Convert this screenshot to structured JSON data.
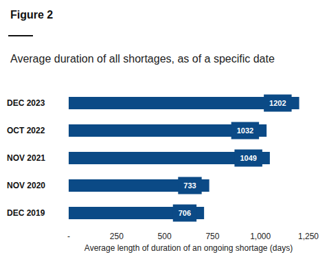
{
  "chart_data": {
    "type": "bar",
    "orientation": "horizontal",
    "title": "Figure 2",
    "subtitle": "Average duration of all shortages, as of a specific date",
    "x_label": "Average length of duration of an ongoing shortage (days)",
    "categories": [
      "DEC 2023",
      "OCT 2022",
      "NOV 2021",
      "NOV 2020",
      "DEC 2019"
    ],
    "values": [
      1202,
      1032,
      1049,
      733,
      706
    ],
    "color": "#0b4a86",
    "xlim": [
      0,
      1250
    ],
    "xticks": [
      {
        "value": 0,
        "label": "-"
      },
      250,
      500,
      750,
      {
        "value": 1000,
        "label": "1,000"
      },
      {
        "value": 1250,
        "label": "1,250"
      }
    ],
    "grid": false,
    "data_labels": true
  }
}
